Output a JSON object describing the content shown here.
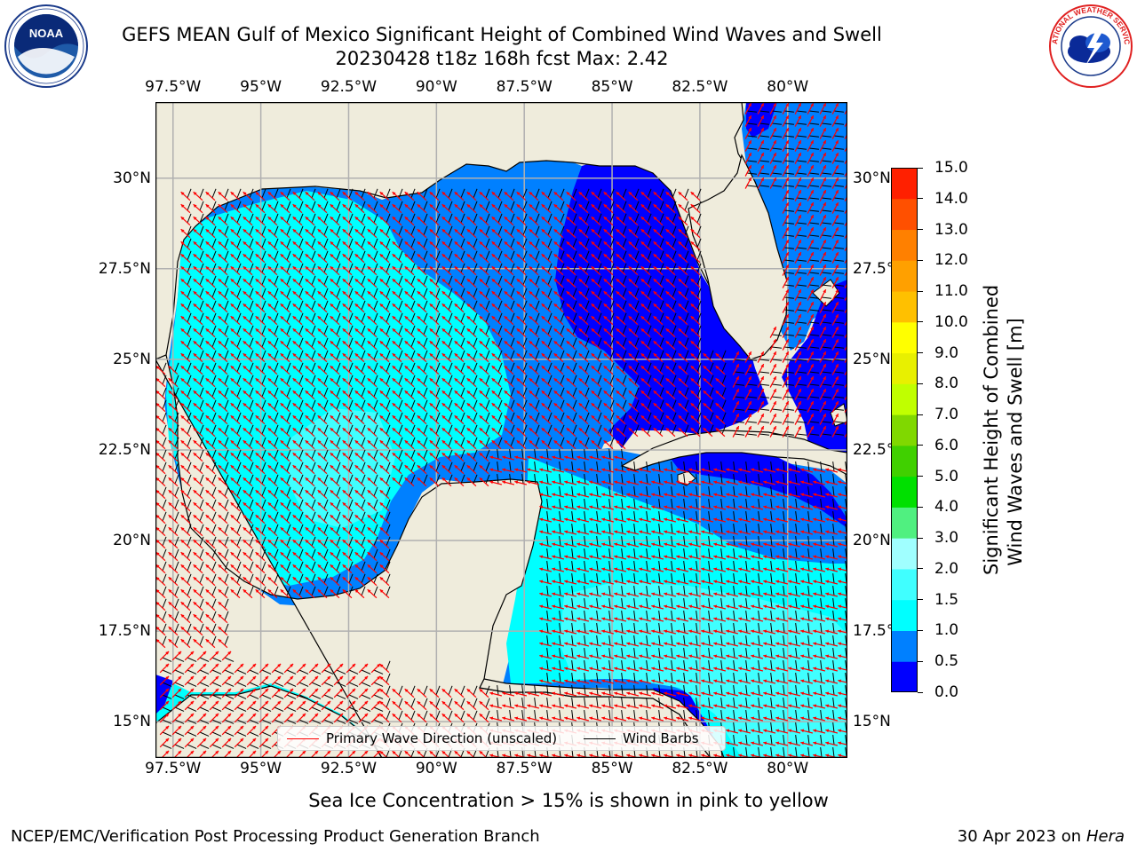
{
  "title": {
    "line1": "GEFS MEAN Gulf of Mexico Significant Height of Combined Wind Waves and Swell",
    "line2": "20230428 t18z 168h fcst   Max: 2.42"
  },
  "logos": {
    "noaa": {
      "text": "NOAA",
      "ring_text": "NATIONAL OCEANIC AND ATMOSPHERIC ADMINISTRATION · U.S. DEPARTMENT OF COMMERCE"
    },
    "nws": {
      "ring_text": "NATIONAL WEATHER SERVICE"
    }
  },
  "axes": {
    "lon_ticks": [
      "97.5°W",
      "95°W",
      "92.5°W",
      "90°W",
      "87.5°W",
      "85°W",
      "82.5°W",
      "80°W"
    ],
    "lat_ticks": [
      "30°N",
      "27.5°N",
      "25°N",
      "22.5°N",
      "20°N",
      "17.5°N",
      "15°N"
    ],
    "lon_values": [
      -97.5,
      -95,
      -92.5,
      -90,
      -87.5,
      -85,
      -82.5,
      -80
    ],
    "lat_values": [
      30,
      27.5,
      25,
      22.5,
      20,
      17.5,
      15
    ],
    "lon_range": [
      -98,
      -78.3
    ],
    "lat_range": [
      14,
      32.1
    ],
    "grid": true
  },
  "colorbar": {
    "label_line1": "Significant Height of Combined",
    "label_line2": "Wind Waves and Swell [m]",
    "ticks": [
      "15.0",
      "14.0",
      "13.0",
      "12.0",
      "11.0",
      "10.0",
      "9.0",
      "8.0",
      "7.0",
      "6.0",
      "5.0",
      "4.0",
      "3.0",
      "2.0",
      "1.5",
      "1.0",
      "0.5",
      "0.0"
    ],
    "colors_bottom_to_top": [
      "#0000ff",
      "#0080ff",
      "#00ffff",
      "#40ffff",
      "#a0ffff",
      "#50f080",
      "#00e000",
      "#40d000",
      "#80d800",
      "#c0ff00",
      "#e8f000",
      "#ffff00",
      "#ffc000",
      "#ffa000",
      "#ff8000",
      "#ff5000",
      "#ff2000"
    ]
  },
  "legend": {
    "primary_label": "Primary Wave Direction (unscaled)",
    "primary_color": "#ff0000",
    "barb_label": "Wind Barbs",
    "barb_color": "#000000"
  },
  "colors": {
    "land": "#efecdc",
    "coast": "#000000",
    "grid": "#b0b0b0",
    "wave_low": "#0000ff",
    "wave_mid": "#0080ff",
    "wave_high": "#00ffff",
    "wave_max": "#40ffff"
  },
  "sea_ice_note": "Sea Ice Concentration > 15% is shown in pink to yellow",
  "footer": {
    "left": "NCEP/EMC/Verification Post Processing Product Generation Branch",
    "right_prefix": "30 Apr 2023 on ",
    "right_machine": "Hera"
  }
}
